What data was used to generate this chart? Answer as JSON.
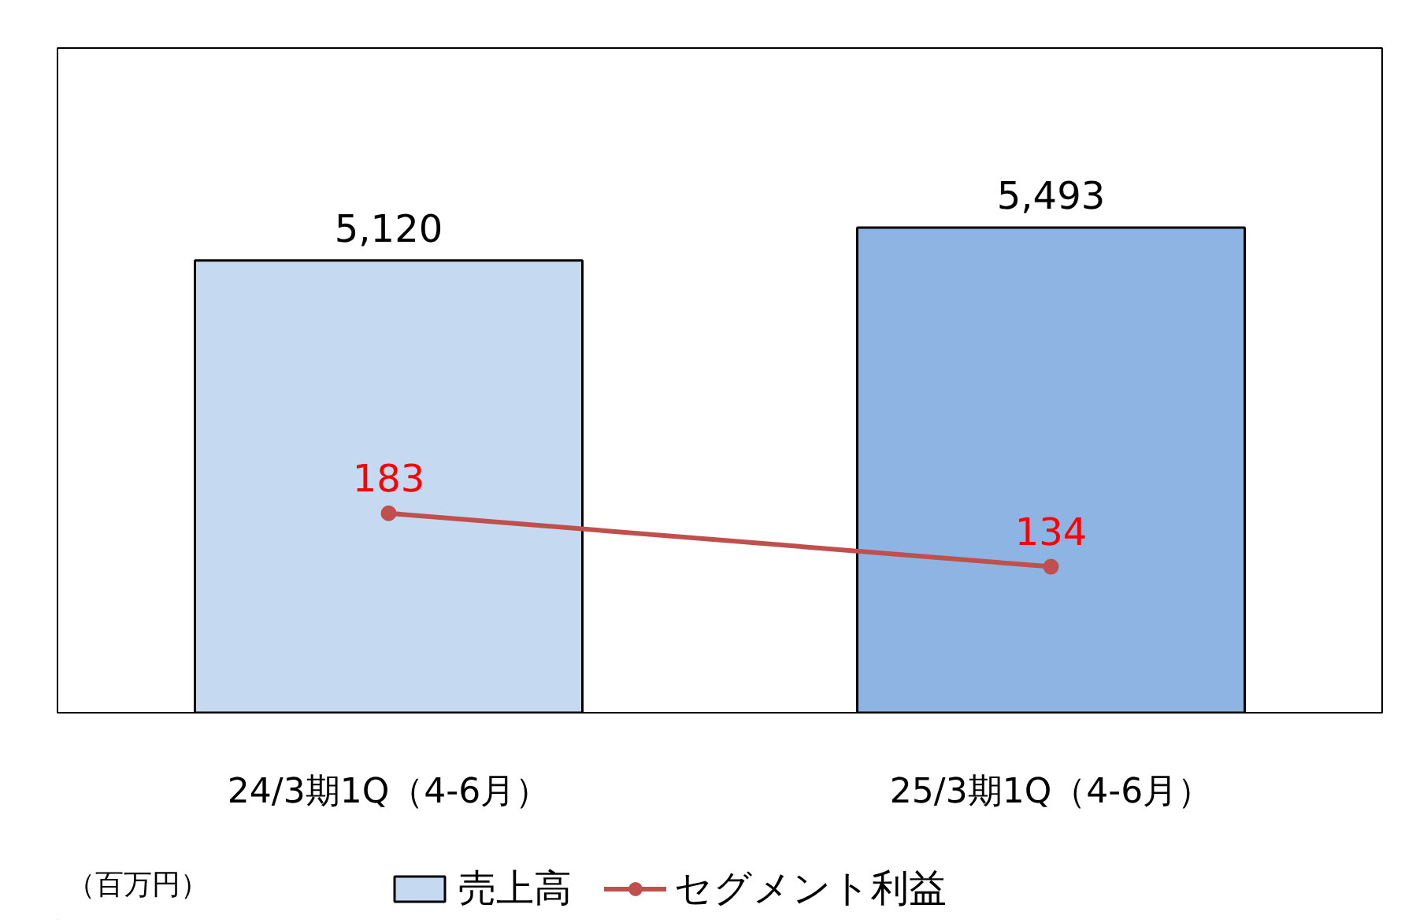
{
  "chart_data": {
    "type": "bar",
    "categories": [
      "24/3期1Q（4-6月）",
      "25/3期1Q（4-6月）"
    ],
    "series": [
      {
        "name": "売上高",
        "colors": [
          "#c5d9f1",
          "#8db4e2"
        ],
        "color": "#c5d9f1",
        "values": [
          5120,
          5493
        ],
        "value_labels": [
          "5,120",
          "5,493"
        ]
      },
      {
        "name": "セグメント利益",
        "type": "line",
        "axis": "y2",
        "color": "#c0504d",
        "values": [
          183,
          134
        ]
      }
    ],
    "data_labels": true,
    "marker": "circle",
    "legend": "bottom",
    "grid": false,
    "annotations": [
      "（百万円）"
    ]
  }
}
